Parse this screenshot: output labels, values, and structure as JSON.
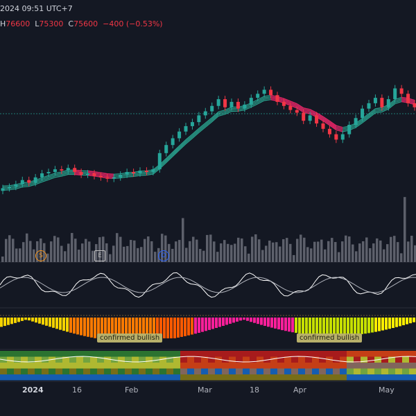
{
  "header": {
    "datetime": "2024 09:51 UTC+7",
    "ohlc": {
      "h_label": "H",
      "h": "76600",
      "l_label": "L",
      "l": "75300",
      "c_label": "C",
      "c": "75600",
      "change": "−400 (−0.53%)"
    }
  },
  "events": [
    {
      "letter": "S",
      "color": "#f7931a"
    },
    {
      "letter": "E",
      "color": "#c0c0c0"
    },
    {
      "letter": "D",
      "color": "#2962ff"
    }
  ],
  "badges": [
    "confirmed bullish",
    "confirmed bullish"
  ],
  "xaxis": {
    "labels": [
      "2024",
      "16",
      "Feb",
      "Mar",
      "18",
      "Apr",
      "May"
    ]
  },
  "colors": {
    "up": "#26a69a",
    "down": "#f23645",
    "ribbon_teal": "#2ebfa5",
    "ribbon_pink": "#e91e63",
    "volume": "#5d606b",
    "osc_line": "#ffffff",
    "background": "#141823"
  },
  "chart_data": {
    "type": "candlestick",
    "series": [
      {
        "name": "",
        "values": [
          75.2,
          75.3,
          75.5,
          75.8,
          75.6,
          76.0,
          76.3,
          76.4,
          76.6,
          76.5,
          76.7,
          76.4,
          76.2,
          76.3,
          76.1,
          76.0,
          75.9,
          76.0,
          76.2,
          76.4,
          76.3,
          76.5,
          76.4,
          76.6,
          77.8,
          78.4,
          78.9,
          79.4,
          79.8,
          80.1,
          80.6,
          80.9,
          81.3,
          81.8,
          81.2,
          81.6,
          81.1,
          81.4,
          81.9,
          82.2,
          82.5,
          82.1,
          81.6,
          81.3,
          81.0,
          80.8,
          80.2,
          80.6,
          80.0,
          79.6,
          79.2,
          78.8,
          79.2,
          79.9,
          80.4,
          81.1,
          81.5,
          81.9,
          81.2,
          81.8,
          82.6,
          82.2,
          81.5,
          81.2
        ]
      }
    ]
  }
}
